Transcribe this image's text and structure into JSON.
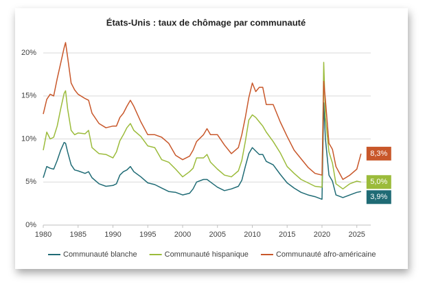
{
  "chart_data": {
    "type": "line",
    "title": "États-Unis : taux de chômage par communauté",
    "x": [
      1980,
      1980.5,
      1981,
      1981.5,
      1982,
      1982.5,
      1983,
      1983.2,
      1983.5,
      1984,
      1984.5,
      1985,
      1986,
      1986.5,
      1987,
      1988,
      1989,
      1990,
      1990.5,
      1991,
      1991.5,
      1992,
      1992.5,
      1993,
      1994,
      1995,
      1996,
      1997,
      1998,
      1999,
      2000,
      2001,
      2001.5,
      2002,
      2003,
      2003.5,
      2004,
      2005,
      2006,
      2007,
      2008,
      2008.5,
      2009,
      2009.5,
      2010,
      2010.5,
      2011,
      2011.5,
      2012,
      2013,
      2014,
      2015,
      2016,
      2017,
      2018,
      2019,
      2020,
      2020.25,
      2020.5,
      2021,
      2021.5,
      2022,
      2023,
      2024,
      2025,
      2025.6
    ],
    "series": [
      {
        "name": "Communauté blanche",
        "color": "#1f6b75",
        "end_label": "3,9%",
        "values": [
          5.5,
          6.8,
          6.6,
          6.5,
          7.5,
          8.7,
          9.6,
          9.5,
          8.5,
          7.0,
          6.4,
          6.3,
          6.0,
          6.2,
          5.5,
          4.8,
          4.5,
          4.6,
          4.8,
          5.8,
          6.2,
          6.4,
          6.8,
          6.2,
          5.6,
          4.9,
          4.7,
          4.3,
          3.9,
          3.8,
          3.5,
          3.7,
          4.2,
          5.0,
          5.3,
          5.3,
          5.0,
          4.4,
          4.0,
          4.2,
          4.5,
          5.2,
          6.8,
          8.3,
          9.0,
          8.6,
          8.2,
          8.2,
          7.4,
          7.0,
          5.9,
          4.9,
          4.3,
          3.8,
          3.5,
          3.3,
          3.0,
          14.2,
          10.0,
          5.8,
          5.1,
          3.5,
          3.2,
          3.5,
          3.8,
          3.9
        ]
      },
      {
        "name": "Communauté hispanique",
        "color": "#9bbb3a",
        "end_label": "5,0%",
        "values": [
          8.7,
          10.8,
          10.0,
          10.2,
          11.5,
          13.5,
          15.3,
          15.6,
          13.5,
          11.0,
          10.5,
          10.7,
          10.6,
          11.0,
          9.0,
          8.3,
          8.2,
          7.8,
          8.5,
          9.8,
          10.5,
          11.3,
          11.8,
          11.0,
          10.3,
          9.2,
          9.0,
          7.6,
          7.3,
          6.5,
          5.6,
          6.2,
          6.6,
          7.8,
          7.8,
          8.2,
          7.3,
          6.5,
          5.8,
          5.6,
          6.3,
          7.5,
          9.7,
          12.2,
          12.8,
          12.5,
          12.0,
          11.5,
          10.8,
          9.7,
          8.4,
          6.8,
          6.0,
          5.3,
          4.9,
          4.5,
          4.4,
          18.9,
          12.5,
          8.5,
          7.2,
          4.8,
          4.2,
          4.8,
          5.1,
          5.0
        ]
      },
      {
        "name": "Communauté afro-américaine",
        "color": "#c8572a",
        "end_label": "8,3%",
        "values": [
          12.9,
          14.6,
          15.2,
          15.0,
          17.0,
          18.8,
          20.6,
          21.2,
          19.5,
          16.5,
          15.7,
          15.2,
          14.7,
          14.5,
          13.0,
          11.8,
          11.3,
          11.5,
          11.5,
          12.5,
          13.0,
          13.8,
          14.5,
          13.8,
          12.0,
          10.5,
          10.5,
          10.2,
          9.5,
          8.1,
          7.6,
          8.0,
          8.7,
          9.7,
          10.5,
          11.2,
          10.5,
          10.5,
          9.3,
          8.3,
          9.0,
          10.5,
          12.5,
          14.8,
          16.5,
          15.5,
          16.0,
          16.0,
          14.0,
          14.0,
          12.0,
          10.3,
          8.7,
          7.7,
          6.7,
          6.0,
          5.8,
          16.7,
          14.5,
          9.5,
          8.8,
          6.8,
          5.3,
          5.8,
          6.5,
          8.3
        ]
      }
    ],
    "xlim": [
      1980,
      2027
    ],
    "xticks": [
      1980,
      1985,
      1990,
      1995,
      2000,
      2005,
      2010,
      2015,
      2020,
      2025
    ],
    "ylim": [
      0,
      22
    ],
    "yticks": [
      {
        "value": 0,
        "label": "0%"
      },
      {
        "value": 5,
        "label": "5%"
      },
      {
        "value": 10,
        "label": "10%"
      },
      {
        "value": 15,
        "label": "15%"
      },
      {
        "value": 20,
        "label": "20%"
      }
    ],
    "grid": true,
    "legend": "bottom"
  }
}
